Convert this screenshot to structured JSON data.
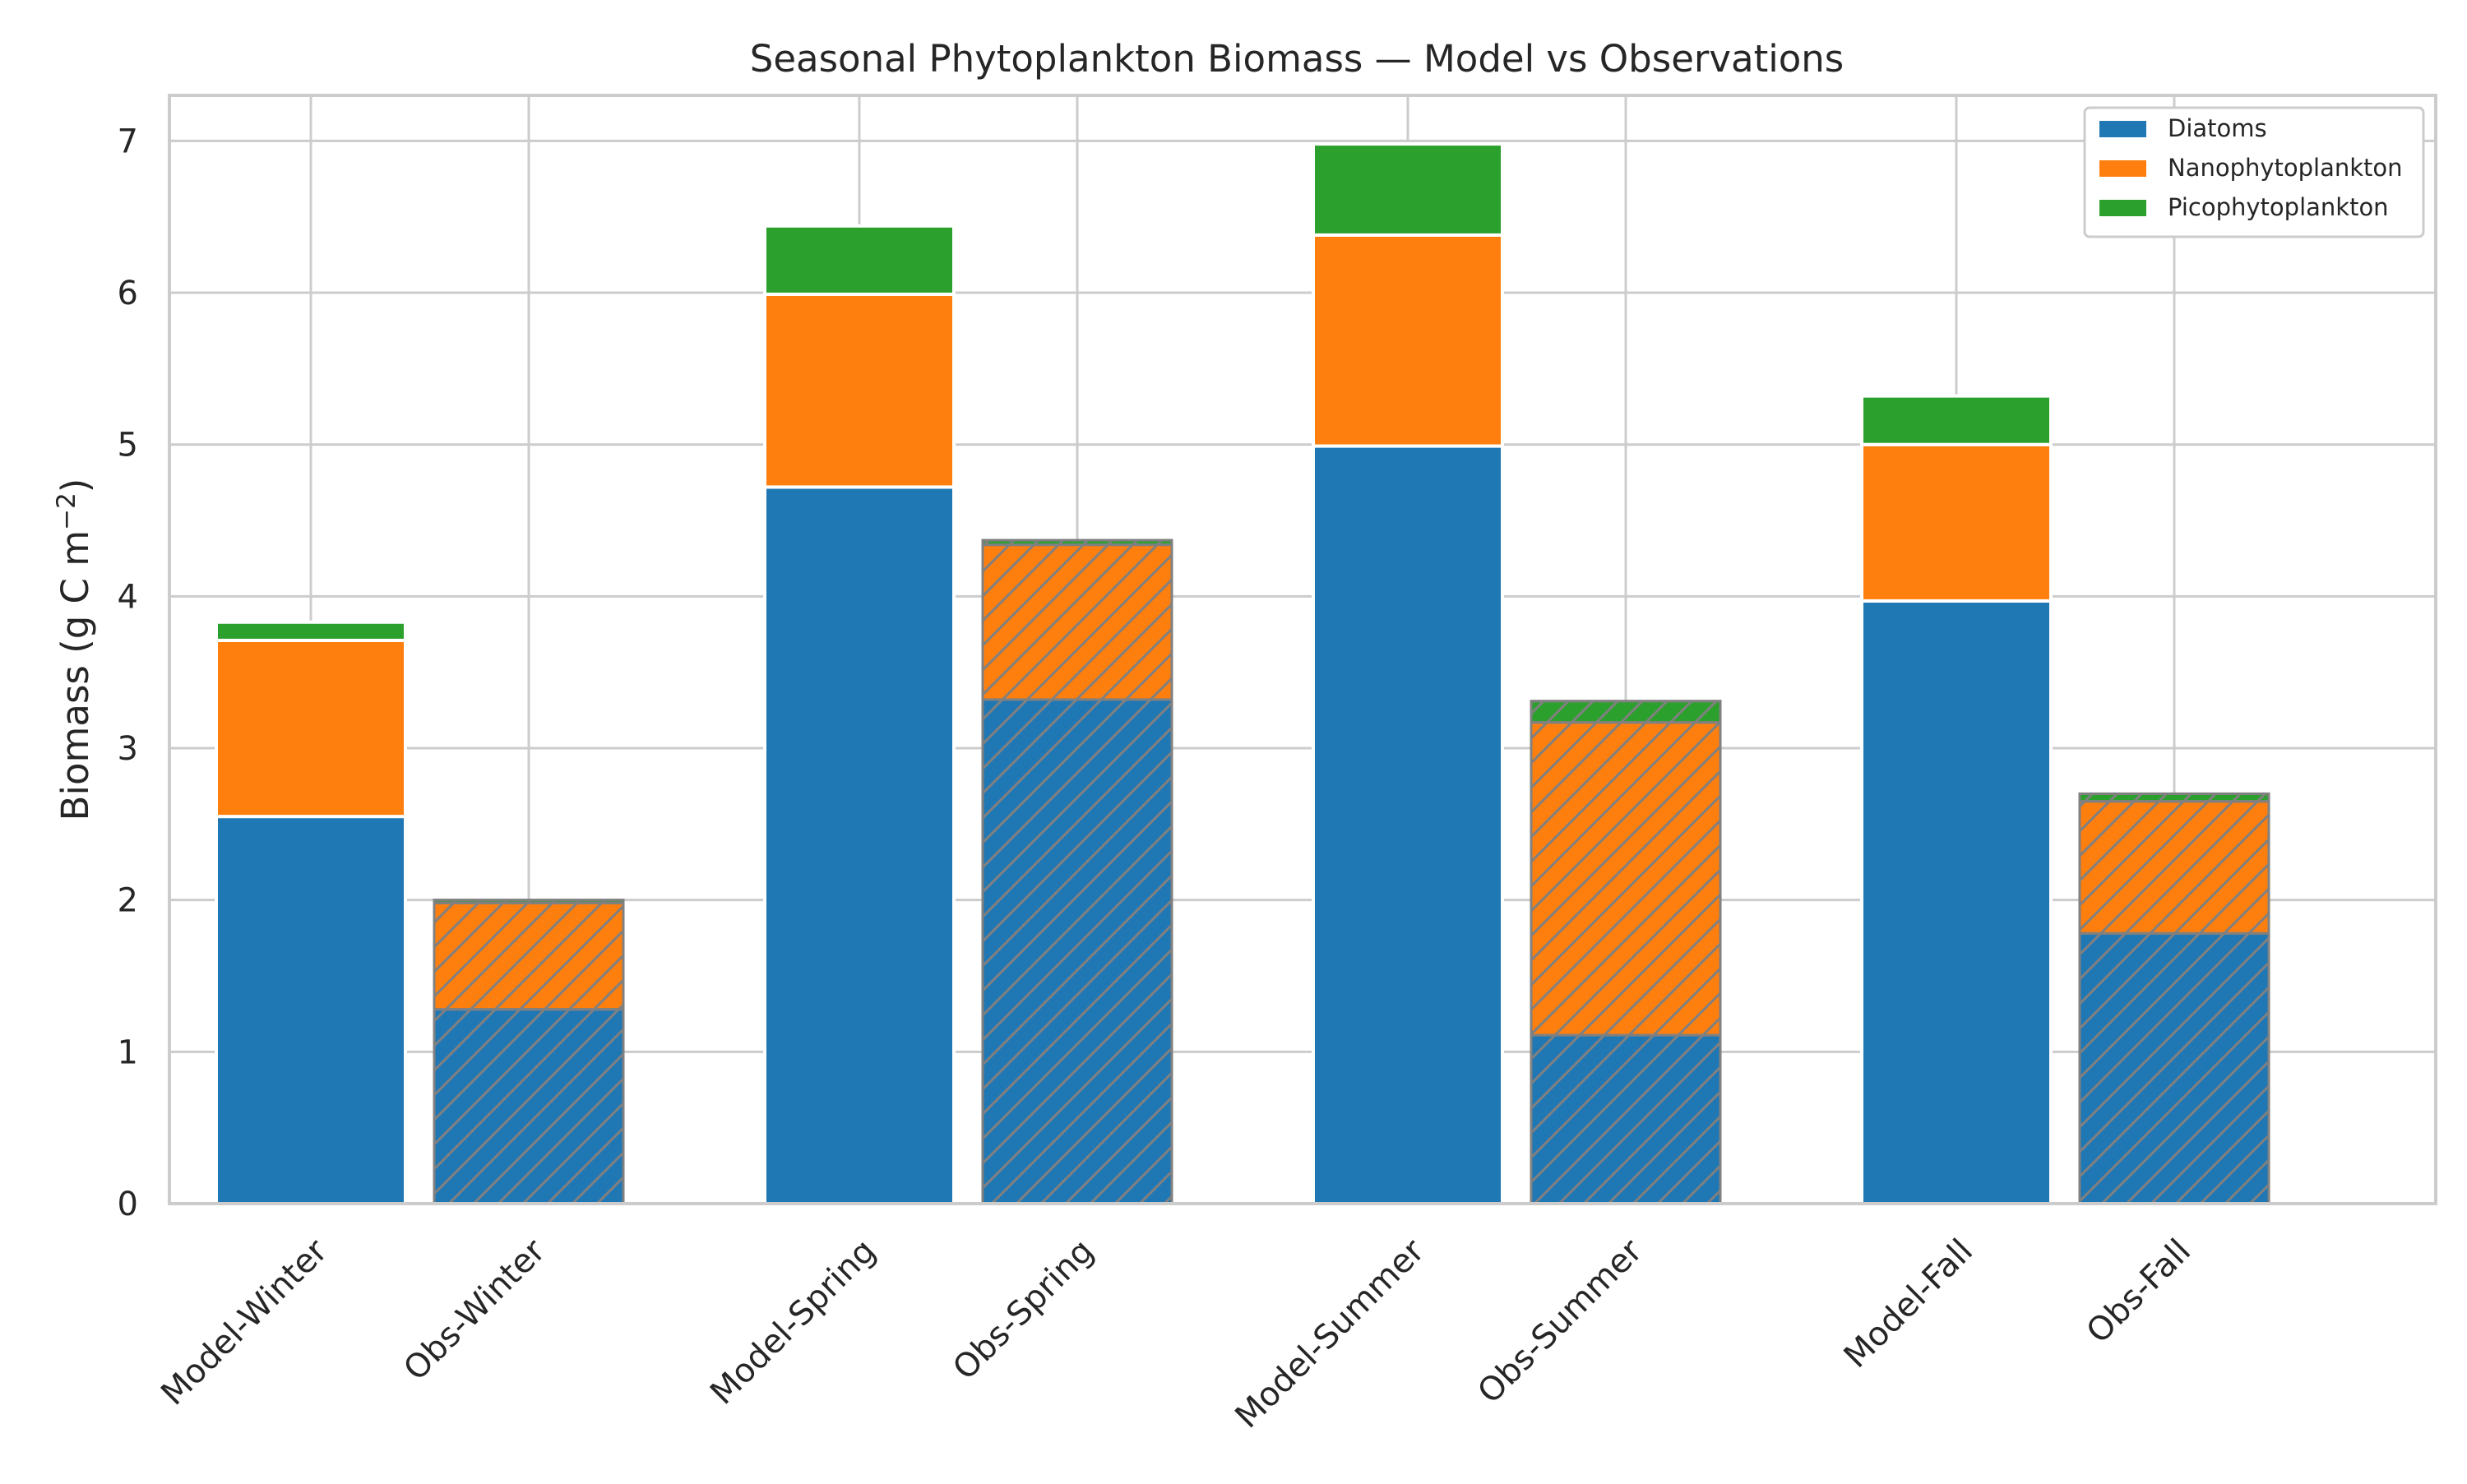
{
  "chart_data": {
    "type": "bar",
    "stacked": true,
    "title": "Seasonal Phytoplankton Biomass — Model vs Observations",
    "xlabel": "",
    "ylabel": "Biomass (g C m",
    "ylabel_superscript": "−2",
    "ylabel_suffix": ")",
    "ylim": [
      0,
      7.3
    ],
    "yticks": [
      0,
      1,
      2,
      3,
      4,
      5,
      6,
      7
    ],
    "grid": true,
    "legend_position": "top-right",
    "categories": [
      "Model-Winter",
      "Obs-Winter",
      "Model-Spring",
      "Obs-Spring",
      "Model-Summer",
      "Obs-Summer",
      "Model-Fall",
      "Obs-Fall"
    ],
    "hatched_categories": [
      "Obs-Winter",
      "Obs-Spring",
      "Obs-Summer",
      "Obs-Fall"
    ],
    "series": [
      {
        "name": "Diatoms",
        "color": "#1f77b4",
        "values": [
          2.55,
          1.28,
          4.72,
          3.32,
          4.99,
          1.11,
          3.97,
          1.78
        ]
      },
      {
        "name": "Nanophytoplankton",
        "color": "#ff7f0e",
        "values": [
          1.16,
          0.7,
          1.27,
          1.02,
          1.39,
          2.06,
          1.03,
          0.87
        ]
      },
      {
        "name": "Picophytoplankton",
        "color": "#2ca02c",
        "values": [
          0.12,
          0.02,
          0.45,
          0.03,
          0.6,
          0.14,
          0.32,
          0.05
        ]
      }
    ]
  }
}
